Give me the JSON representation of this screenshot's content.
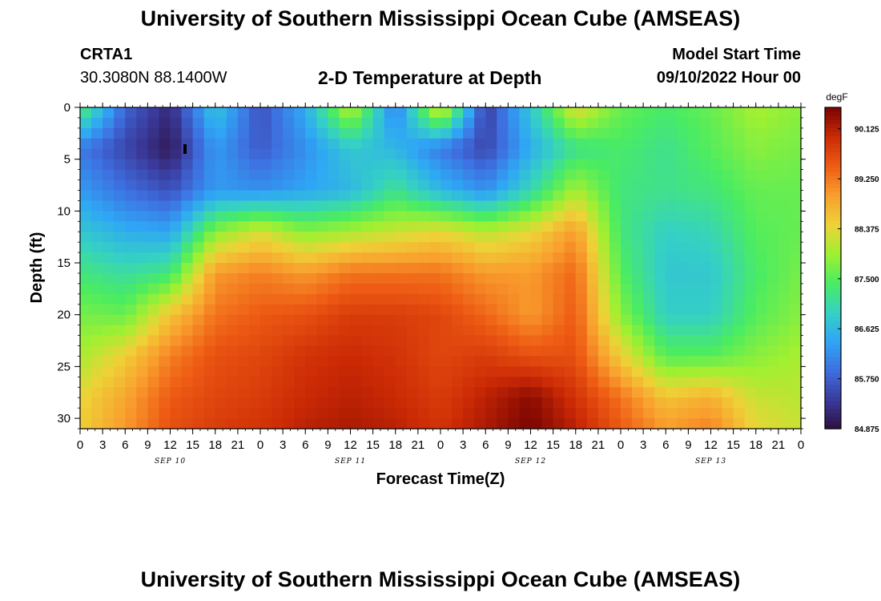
{
  "header": {
    "title": "University of Southern Mississippi Ocean Cube (AMSEAS)",
    "station_id": "CRTA1",
    "station_location": "30.3080N  88.1400W",
    "subtitle": "2-D Temperature at Depth",
    "model_label": "Model Start Time",
    "model_start": "09/10/2022 Hour 00"
  },
  "footer": {
    "title": "University of Southern Mississippi Ocean Cube (AMSEAS)"
  },
  "colors": {
    "colormap": [
      "#2d0f3f",
      "#3a3a9c",
      "#3e6fe0",
      "#2fa6f5",
      "#35d1c4",
      "#4aec62",
      "#a0f031",
      "#eed237",
      "#f99f2e",
      "#ee5c14",
      "#cc2a05",
      "#7a0402"
    ]
  },
  "chart_data": {
    "type": "heatmap",
    "title": "2-D Temperature at Depth",
    "xlabel": "Forecast Time(Z)",
    "ylabel": "Depth (ft)",
    "x_unit": "forecast hour",
    "xlim": [
      0,
      96
    ],
    "ylim": [
      31,
      0
    ],
    "x_tick_values": [
      0,
      3,
      6,
      9,
      12,
      15,
      18,
      21,
      24,
      27,
      30,
      33,
      36,
      39,
      42,
      45,
      48,
      51,
      54,
      57,
      60,
      63,
      66,
      69,
      72,
      75,
      78,
      81,
      84,
      87,
      90,
      93,
      96
    ],
    "x_tick_labels": [
      "0",
      "3",
      "6",
      "9",
      "12",
      "15",
      "18",
      "21",
      "0",
      "3",
      "6",
      "9",
      "12",
      "15",
      "18",
      "21",
      "0",
      "3",
      "6",
      "9",
      "12",
      "15",
      "18",
      "21",
      "0",
      "3",
      "6",
      "9",
      "12",
      "15",
      "18",
      "21",
      "0"
    ],
    "day_labels": [
      {
        "label": "SEP 10",
        "hour": 12
      },
      {
        "label": "SEP 11",
        "hour": 36
      },
      {
        "label": "SEP 12",
        "hour": 60
      },
      {
        "label": "SEP 13",
        "hour": 84
      }
    ],
    "y_ticks": [
      0,
      5,
      10,
      15,
      20,
      25,
      30
    ],
    "y_tick_labels": [
      "0",
      "5",
      "10",
      "15",
      "20",
      "25",
      "30"
    ],
    "colorbar": {
      "units": "degF",
      "min": 84.875,
      "max": 90.5,
      "tick_values": [
        90.125,
        89.25,
        88.375,
        87.5,
        86.625,
        85.75,
        84.875
      ],
      "tick_labels": [
        "90.125",
        "89.250",
        "88.375",
        "87.500",
        "86.625",
        "85.750",
        "84.875"
      ]
    },
    "grid_hours": [
      0,
      6,
      12,
      18,
      24,
      30,
      36,
      42,
      48,
      54,
      60,
      66,
      72,
      78,
      84,
      90,
      96
    ],
    "grid_depths": [
      0,
      4,
      8,
      12,
      16,
      20,
      24,
      28,
      31
    ],
    "temperature_degF": [
      [
        87.5,
        85.8,
        85.2,
        86.8,
        85.6,
        86.5,
        88.2,
        86.0,
        88.5,
        85.4,
        86.8,
        88.4,
        87.6,
        87.4,
        87.6,
        88.0,
        87.8
      ],
      [
        86.0,
        85.5,
        85.0,
        86.3,
        85.7,
        86.2,
        86.8,
        86.6,
        86.0,
        85.5,
        86.5,
        87.2,
        87.4,
        87.2,
        87.5,
        87.8,
        87.7
      ],
      [
        86.3,
        85.9,
        85.6,
        86.3,
        86.2,
        86.4,
        86.6,
        87.2,
        86.6,
        86.2,
        87.0,
        88.0,
        87.3,
        87.2,
        87.3,
        87.6,
        87.6
      ],
      [
        86.8,
        86.5,
        86.4,
        87.8,
        88.3,
        87.8,
        88.0,
        88.2,
        88.4,
        88.1,
        88.4,
        89.0,
        87.3,
        86.9,
        87.0,
        87.5,
        87.6
      ],
      [
        87.3,
        87.1,
        87.3,
        89.0,
        89.2,
        89.0,
        89.3,
        89.3,
        89.3,
        89.0,
        89.0,
        89.4,
        87.5,
        86.8,
        86.8,
        87.4,
        87.7
      ],
      [
        87.7,
        87.6,
        88.6,
        89.3,
        89.5,
        89.6,
        89.8,
        89.8,
        89.7,
        89.4,
        89.0,
        89.5,
        87.8,
        86.9,
        86.9,
        87.5,
        87.8
      ],
      [
        88.0,
        88.5,
        89.2,
        89.6,
        89.7,
        89.9,
        90.0,
        89.9,
        89.7,
        89.8,
        89.6,
        89.6,
        88.5,
        87.5,
        87.5,
        87.8,
        88.0
      ],
      [
        88.4,
        88.9,
        89.5,
        89.7,
        89.8,
        90.0,
        90.1,
        90.0,
        89.8,
        90.1,
        90.4,
        89.9,
        89.3,
        88.6,
        88.8,
        88.2,
        88.1
      ],
      [
        88.5,
        89.0,
        89.6,
        89.8,
        89.9,
        90.1,
        90.2,
        90.1,
        89.9,
        90.2,
        90.5,
        90.1,
        89.5,
        89.0,
        89.2,
        88.4,
        88.2
      ]
    ]
  }
}
